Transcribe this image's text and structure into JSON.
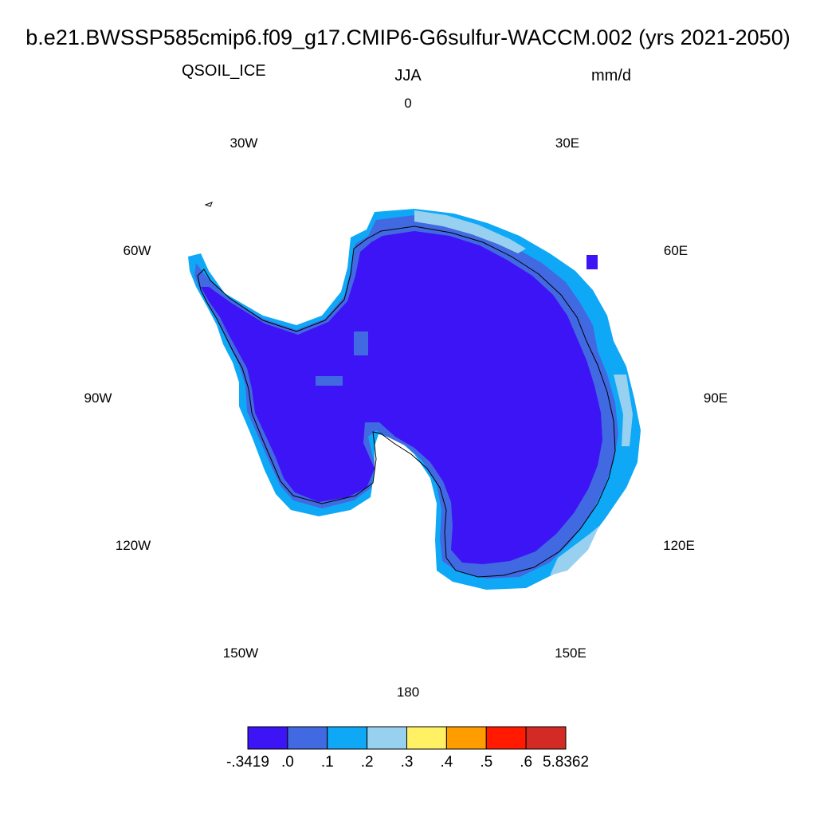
{
  "header": {
    "title": "b.e21.BWSSP585cmip6.f09_g17.CMIP6-G6sulfur-WACCM.002 (yrs 2021-2050)",
    "variable": "QSOIL_ICE",
    "season": "JJA",
    "units": "mm/d"
  },
  "map": {
    "projection": "south-polar-stereographic",
    "longitude_labels": [
      "0",
      "30E",
      "60E",
      "90E",
      "120E",
      "150E",
      "180",
      "150W",
      "120W",
      "90W",
      "60W",
      "30W"
    ]
  },
  "colorbar": {
    "colors": [
      "#3c14f5",
      "#4169e1",
      "#0fa8f7",
      "#98d0ef",
      "#fff064",
      "#ff9d00",
      "#ff1a00",
      "#d32a26"
    ],
    "labels": [
      "-.3419",
      ".0",
      ".1",
      ".2",
      ".3",
      ".4",
      ".5",
      ".6",
      "5.8362"
    ]
  },
  "colors": {
    "ice_sheet": "#3c14f5",
    "coastal_low": "#4169e1",
    "coastal_mid": "#0fa8f7",
    "coastal_high": "#98d0ef",
    "outline": "#000000"
  }
}
